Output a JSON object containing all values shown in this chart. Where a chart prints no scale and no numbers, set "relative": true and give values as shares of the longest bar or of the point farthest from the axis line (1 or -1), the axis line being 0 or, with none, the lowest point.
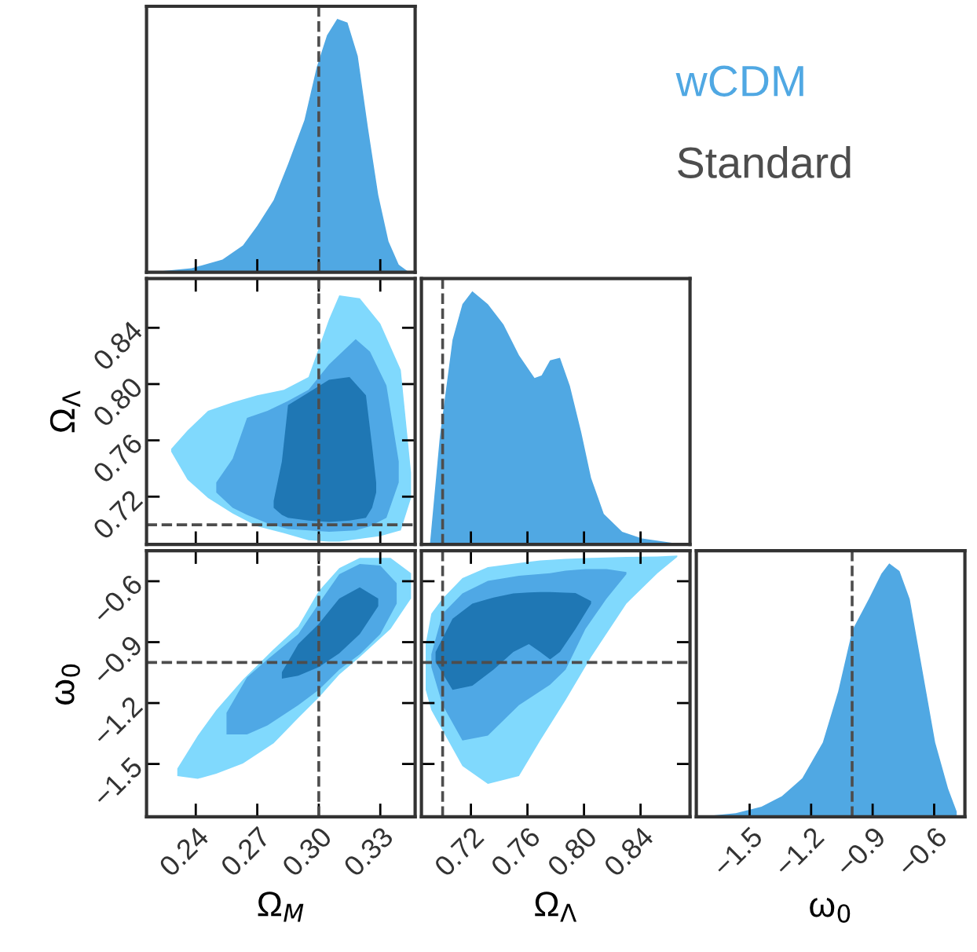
{
  "chart_data": [
    {
      "type": "area",
      "relative": true,
      "legend": "right",
      "tick_labels": false,
      "xlim": [
        0.216,
        0.347
      ],
      "xticks": [
        0.24,
        0.27,
        0.3,
        0.33
      ],
      "series": [
        {
          "name": "wCDM",
          "color": "#50a8e3",
          "x": [
            0.218,
            0.238,
            0.253,
            0.263,
            0.27,
            0.278,
            0.285,
            0.293,
            0.299,
            0.304,
            0.309,
            0.314,
            0.319,
            0.324,
            0.329,
            0.334,
            0.339,
            0.344
          ],
          "values": [
            0,
            0.016,
            0.05,
            0.106,
            0.183,
            0.285,
            0.427,
            0.6,
            0.81,
            0.935,
            1.0,
            0.986,
            0.854,
            0.569,
            0.305,
            0.122,
            0.03,
            0
          ]
        }
      ],
      "ref_lines": [
        {
          "axis": "x",
          "value": 0.3,
          "label": "Standard",
          "color": "#4d4d4d",
          "line_style": "dashed"
        }
      ]
    },
    {
      "type": "area",
      "tick_labels": "y",
      "ylabel": "Ω$_{Λ}$",
      "xlim": [
        0.216,
        0.347
      ],
      "xticks": [
        0.24,
        0.27,
        0.3,
        0.33
      ],
      "ylim": [
        0.686,
        0.875
      ],
      "yticks": [
        0.72,
        0.76,
        {
          "value": 0.8,
          "label": "0.80"
        },
        0.84
      ],
      "series": [
        {
          "color": "#80d9fd",
          "x": [
            0.228,
            0.236,
            0.246,
            0.258,
            0.27,
            0.283,
            0.295,
            0.305,
            0.31,
            0.32,
            0.33,
            0.34,
            0.345
          ],
          "values": [
            null,
            null,
            null,
            null,
            null,
            null,
            null,
            null,
            null,
            null,
            null,
            null,
            null
          ],
          "lower": [
            0.752,
            0.732,
            0.719,
            0.708,
            0.699,
            0.694,
            0.689,
            0.688,
            0.688,
            0.69,
            0.692,
            0.696,
            0.719
          ],
          "upper": [
            0.754,
            0.767,
            0.781,
            0.787,
            0.792,
            0.796,
            0.805,
            0.846,
            0.863,
            0.861,
            0.843,
            0.81,
            0.737
          ]
        },
        {
          "color": "#4fa8e5",
          "x": [
            0.25,
            0.258,
            0.265,
            0.275,
            0.285,
            0.295,
            0.305,
            0.318,
            0.325,
            0.333,
            0.339
          ],
          "values": [
            null,
            null,
            null,
            null,
            null,
            null,
            null,
            null,
            null,
            null,
            null
          ],
          "lower": [
            0.723,
            0.712,
            0.707,
            0.701,
            0.697,
            0.696,
            0.695,
            0.696,
            0.699,
            0.705,
            0.73
          ],
          "upper": [
            0.73,
            0.747,
            0.776,
            0.781,
            0.788,
            0.796,
            0.814,
            0.832,
            0.823,
            0.799,
            0.745
          ]
        },
        {
          "color": "#1f77b4",
          "x": [
            0.278,
            0.282,
            0.285,
            0.295,
            0.305,
            0.315,
            0.323,
            0.326,
            0.328
          ],
          "values": [
            null,
            null,
            null,
            null,
            null,
            null,
            null,
            null,
            null
          ],
          "lower": [
            0.712,
            0.707,
            0.705,
            0.703,
            0.702,
            0.703,
            0.705,
            0.712,
            0.723
          ],
          "upper": [
            0.717,
            0.745,
            0.785,
            0.794,
            0.803,
            0.805,
            0.792,
            0.756,
            0.73
          ]
        }
      ],
      "ref_lines": [
        {
          "axis": "x",
          "value": 0.3,
          "color": "#4d4d4d",
          "line_style": "dashed"
        },
        {
          "axis": "y",
          "value": 0.7,
          "color": "#4d4d4d",
          "line_style": "dashed"
        }
      ]
    },
    {
      "type": "area",
      "relative": true,
      "tick_labels": false,
      "xlim": [
        0.685,
        0.875
      ],
      "xticks": [
        0.72,
        0.76,
        0.8,
        0.84
      ],
      "series": [
        {
          "color": "#50a8e3",
          "x": [
            0.691,
            0.698,
            0.707,
            0.714,
            0.721,
            0.732,
            0.743,
            0.754,
            0.765,
            0.77,
            0.776,
            0.783,
            0.79,
            0.798,
            0.805,
            0.814,
            0.827,
            0.841,
            0.866
          ],
          "values": [
            0,
            0.424,
            0.808,
            0.949,
            1.0,
            0.949,
            0.869,
            0.747,
            0.657,
            0.667,
            0.727,
            0.737,
            0.626,
            0.444,
            0.263,
            0.121,
            0.05,
            0.024,
            0.004
          ]
        }
      ],
      "ref_lines": [
        {
          "axis": "x",
          "value": 0.7,
          "color": "#4d4d4d",
          "line_style": "dashed"
        }
      ]
    },
    {
      "type": "area",
      "xlabel": "Ω$_{M}$",
      "ylabel": "ω$_{0}$",
      "xlim": [
        0.216,
        0.347
      ],
      "xticks": [
        0.24,
        0.27,
        {
          "value": 0.3,
          "label": "0.30"
        },
        0.33
      ],
      "ylim": [
        -1.76,
        -0.45
      ],
      "yticks": [
        {
          "value": -1.5,
          "label": "−1.5"
        },
        {
          "value": -1.2,
          "label": "−1.2"
        },
        {
          "value": -0.9,
          "label": "−0.9"
        },
        {
          "value": -0.6,
          "label": "−0.6"
        }
      ],
      "series": [
        {
          "color": "#80d9fd",
          "x": [
            0.231,
            0.241,
            0.25,
            0.263,
            0.278,
            0.29,
            0.3,
            0.31,
            0.32,
            0.335,
            0.345
          ],
          "values": [
            null,
            null,
            null,
            null,
            null,
            null,
            null,
            null,
            null,
            null,
            null
          ],
          "lower": [
            -1.56,
            -1.573,
            -1.548,
            -1.498,
            -1.398,
            -1.273,
            -1.173,
            -1.06,
            -0.973,
            -0.835,
            -0.685
          ],
          "upper": [
            -1.523,
            -1.36,
            -1.235,
            -1.085,
            -0.935,
            -0.823,
            -0.648,
            -0.535,
            -0.485,
            -0.485,
            -0.56
          ]
        },
        {
          "color": "#4fa8e5",
          "x": [
            0.255,
            0.265,
            0.275,
            0.29,
            0.3,
            0.31,
            0.32,
            0.33,
            0.338
          ],
          "values": [
            null,
            null,
            null,
            null,
            null,
            null,
            null,
            null,
            null
          ],
          "lower": [
            -1.355,
            -1.355,
            -1.31,
            -1.21,
            -1.135,
            -1.035,
            -0.96,
            -0.86,
            -0.71
          ],
          "upper": [
            -1.248,
            -1.073,
            -0.985,
            -0.86,
            -0.71,
            -0.565,
            -0.515,
            -0.523,
            -0.61
          ]
        },
        {
          "color": "#1f77b4",
          "x": [
            0.282,
            0.29,
            0.3,
            0.31,
            0.32,
            0.329
          ],
          "values": [
            null,
            null,
            null,
            null,
            null,
            null
          ],
          "lower": [
            -1.08,
            -1.065,
            -1.023,
            -0.955,
            -0.86,
            -0.723
          ],
          "upper": [
            -1.048,
            -0.91,
            -0.81,
            -0.685,
            -0.63,
            -0.685
          ]
        }
      ],
      "ref_lines": [
        {
          "axis": "x",
          "value": 0.3,
          "color": "#4d4d4d",
          "line_style": "dashed"
        },
        {
          "axis": "y",
          "value": -1.0,
          "color": "#4d4d4d",
          "line_style": "dashed"
        }
      ]
    },
    {
      "type": "area",
      "tick_labels": "x",
      "xlabel": "Ω$_{Λ}$",
      "xlim": [
        0.685,
        0.875
      ],
      "xticks": [
        0.72,
        0.76,
        {
          "value": 0.8,
          "label": "0.80"
        },
        0.84
      ],
      "ylim": [
        -1.76,
        -0.45
      ],
      "yticks": [
        -1.5,
        -1.2,
        -0.9,
        -0.6
      ],
      "series": [
        {
          "color": "#80d9fd",
          "x": [
            0.688,
            0.692,
            0.7,
            0.714,
            0.732,
            0.754,
            0.769,
            0.787,
            0.805,
            0.83,
            0.852,
            0.866
          ],
          "values": [
            null,
            null,
            null,
            null,
            null,
            null,
            null,
            null,
            null,
            null,
            null,
            null
          ],
          "lower": [
            -1.135,
            -1.235,
            -1.335,
            -1.51,
            -1.598,
            -1.56,
            -1.385,
            -1.185,
            -0.973,
            -0.71,
            -0.56,
            -0.48
          ],
          "upper": [
            -0.91,
            -0.76,
            -0.685,
            -0.585,
            -0.53,
            -0.51,
            -0.498,
            -0.49,
            -0.485,
            -0.48,
            -0.478,
            -0.473
          ]
        },
        {
          "color": "#4fa8e5",
          "x": [
            0.692,
            0.7,
            0.714,
            0.732,
            0.754,
            0.776,
            0.787,
            0.801,
            0.816,
            0.83
          ],
          "values": [
            null,
            null,
            null,
            null,
            null,
            null,
            null,
            null,
            null,
            null
          ],
          "lower": [
            -1.023,
            -1.21,
            -1.385,
            -1.36,
            -1.21,
            -1.11,
            -1.035,
            -0.835,
            -0.685,
            -0.565
          ],
          "upper": [
            -0.96,
            -0.76,
            -0.66,
            -0.598,
            -0.573,
            -0.56,
            -0.548,
            -0.54,
            -0.54,
            -0.555
          ]
        },
        {
          "color": "#1f77b4",
          "x": [
            0.695,
            0.707,
            0.721,
            0.736,
            0.75,
            0.761,
            0.769,
            0.776,
            0.783,
            0.794,
            0.805
          ],
          "values": [
            null,
            null,
            null,
            null,
            null,
            null,
            null,
            null,
            null,
            null,
            null
          ],
          "lower": [
            -0.998,
            -1.135,
            -1.115,
            -1.035,
            -0.948,
            -0.91,
            -0.948,
            -0.985,
            -0.948,
            -0.835,
            -0.71
          ],
          "upper": [
            -0.948,
            -0.785,
            -0.71,
            -0.68,
            -0.66,
            -0.655,
            -0.653,
            -0.653,
            -0.655,
            -0.658,
            -0.698
          ]
        }
      ],
      "ref_lines": [
        {
          "axis": "x",
          "value": 0.7,
          "color": "#4d4d4d",
          "line_style": "dashed"
        },
        {
          "axis": "y",
          "value": -1.0,
          "color": "#4d4d4d",
          "line_style": "dashed"
        }
      ]
    },
    {
      "type": "area",
      "relative": true,
      "tick_labels": "x",
      "xlabel": "ω$_{0}$",
      "xlim": [
        -1.76,
        -0.45
      ],
      "xticks": [
        {
          "value": -1.5,
          "label": "−1.5"
        },
        {
          "value": -1.2,
          "label": "−1.2"
        },
        {
          "value": -0.9,
          "label": "−0.9"
        },
        {
          "value": -0.6,
          "label": "−0.6"
        }
      ],
      "series": [
        {
          "color": "#50a8e3",
          "x": [
            -1.742,
            -1.567,
            -1.442,
            -1.343,
            -1.243,
            -1.143,
            -1.068,
            -0.999,
            -0.919,
            -0.857,
            -0.819,
            -0.769,
            -0.719,
            -0.657,
            -0.595,
            -0.532,
            -0.49
          ],
          "values": [
            0,
            0.014,
            0.04,
            0.081,
            0.152,
            0.293,
            0.495,
            0.737,
            0.859,
            0.96,
            1.0,
            0.97,
            0.859,
            0.576,
            0.293,
            0.111,
            0.02
          ]
        }
      ],
      "ref_lines": [
        {
          "axis": "x",
          "value": -1.0,
          "color": "#4d4d4d",
          "line_style": "dashed"
        }
      ]
    }
  ]
}
